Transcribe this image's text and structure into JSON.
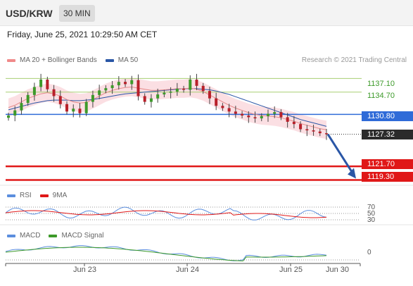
{
  "header": {
    "symbol": "USD/KRW",
    "timeframe": "30 MIN"
  },
  "date_line": "Friday, June 25, 2021 10:29:50 AM CET",
  "legend": [
    {
      "label": "MA 20 + Bollinger Bands",
      "color": "#f08a8a"
    },
    {
      "label": "MA 50",
      "color": "#2a56a6"
    }
  ],
  "credit": "Research © 2021 Trading Central",
  "levels": [
    {
      "value": "1137.10",
      "style": "green"
    },
    {
      "value": "1134.70",
      "style": "green"
    },
    {
      "value": "1130.80",
      "style": "blue"
    },
    {
      "value": "1127.32",
      "style": "dark"
    },
    {
      "value": "1121.70",
      "style": "red"
    },
    {
      "value": "1119.30",
      "style": "red"
    }
  ],
  "rsi": {
    "legend": [
      {
        "label": "RSI",
        "color": "#5b8ede"
      },
      {
        "label": "9MA",
        "color": "#e01818"
      }
    ],
    "levels": [
      "70",
      "50",
      "30"
    ]
  },
  "macd": {
    "legend": [
      {
        "label": "MACD",
        "color": "#5b8ede"
      },
      {
        "label": "MACD Signal",
        "color": "#3d9a2a"
      }
    ],
    "zero_label": "0"
  },
  "xaxis": [
    "Jun 23",
    "Jun 24",
    "Jun 25",
    "Jun 30"
  ],
  "chart_data": {
    "type": "line",
    "series": [
      {
        "name": "USD/KRW",
        "values": [
          1130.6,
          1131.5,
          1132.8,
          1134.2,
          1135.6,
          1136.9,
          1135.2,
          1134.0,
          1132.6,
          1131.3,
          1131.8,
          1131.0,
          1133.0,
          1134.2,
          1135.0,
          1135.4,
          1135.9,
          1136.5,
          1136.1,
          1136.8,
          1134.0,
          1133.0,
          1133.6,
          1134.3,
          1134.6,
          1134.8,
          1135.3,
          1135.1,
          1136.9,
          1135.8,
          1134.9,
          1133.6,
          1132.3,
          1131.9,
          1131.3,
          1130.9,
          1130.6,
          1130.3,
          1130.1,
          1130.5,
          1130.9,
          1131.2,
          1130.3,
          1129.5,
          1129.1,
          1128.2,
          1128.0,
          1127.8,
          1127.5,
          1127.32
        ]
      },
      {
        "name": "MA 20",
        "values": [
          1132.0,
          1132.4,
          1133.0,
          1133.6,
          1134.0,
          1134.4,
          1134.6,
          1134.4,
          1134.0,
          1133.4,
          1133.0,
          1132.8,
          1132.9,
          1133.4,
          1134.0,
          1134.6,
          1135.0,
          1135.3,
          1135.5,
          1135.6,
          1135.4,
          1135.2,
          1135.0,
          1135.0,
          1135.1,
          1135.2,
          1135.3,
          1135.3,
          1135.4,
          1135.2,
          1134.8,
          1134.2,
          1133.6,
          1133.0,
          1132.4,
          1131.9,
          1131.5,
          1131.1,
          1130.8,
          1130.6,
          1130.5,
          1130.4,
          1130.2,
          1129.9,
          1129.6,
          1129.2,
          1128.9,
          1128.6,
          1128.3,
          1128.1
        ]
      },
      {
        "name": "MA 50",
        "values": [
          1131.6,
          1131.9,
          1132.2,
          1132.5,
          1132.8,
          1133.0,
          1133.2,
          1133.3,
          1133.3,
          1133.3,
          1133.2,
          1133.2,
          1133.3,
          1133.4,
          1133.6,
          1133.8,
          1134.0,
          1134.2,
          1134.4,
          1134.5,
          1134.6,
          1134.7,
          1134.8,
          1134.9,
          1135.0,
          1135.1,
          1135.2,
          1135.3,
          1135.3,
          1135.3,
          1135.2,
          1135.1,
          1134.9,
          1134.6,
          1134.3,
          1133.9,
          1133.5,
          1133.1,
          1132.7,
          1132.3,
          1131.9,
          1131.5,
          1131.1,
          1130.7,
          1130.3,
          1129.9,
          1129.6,
          1129.3,
          1129.0,
          1128.7
        ]
      }
    ],
    "levels": [
      1137.1,
      1134.7,
      1130.8,
      1127.32,
      1121.7,
      1119.3
    ],
    "forecast_target": 1119.3,
    "ylim": [
      1118.5,
      1138.5
    ],
    "x_ticks": [
      "Jun 23",
      "Jun 24",
      "Jun 25",
      "Jun 30"
    ],
    "grid": false,
    "legend_position": "top-left"
  }
}
